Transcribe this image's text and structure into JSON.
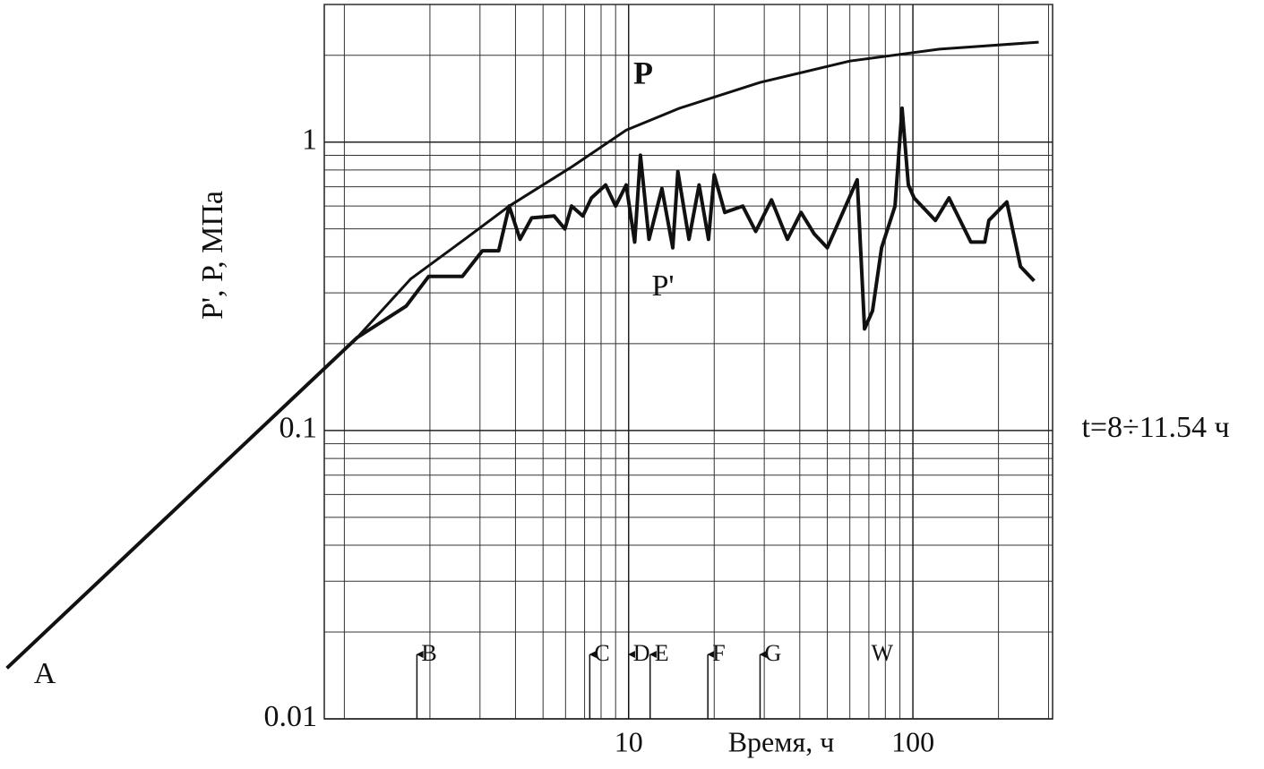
{
  "chart_data": {
    "type": "line",
    "y_label": "P', P, МПа",
    "x_label": "Время, ч",
    "log_x": true,
    "log_y": true,
    "grid": true,
    "xlim": [
      0.85,
      310
    ],
    "ylim": [
      0.01,
      3
    ],
    "xticks": [
      10,
      100
    ],
    "yticks": [
      0.01,
      0.1,
      1
    ],
    "xminor": [
      1,
      2,
      3,
      4,
      5,
      6,
      7,
      8,
      9,
      20,
      30,
      40,
      50,
      60,
      70,
      80,
      90,
      200,
      300
    ],
    "yminor": [
      0.02,
      0.03,
      0.04,
      0.05,
      0.06,
      0.07,
      0.08,
      0.09,
      0.2,
      0.3,
      0.4,
      0.5,
      0.6,
      0.7,
      0.8,
      0.9,
      2,
      3
    ],
    "series": [
      {
        "name": "P",
        "color": "#111111",
        "x": [
          0.065,
          1.11,
          1.71,
          2.65,
          3.8,
          6.3,
          9.8,
          15.1,
          29,
          60,
          124,
          277
        ],
        "values": [
          0.015,
          0.21,
          0.335,
          0.46,
          0.6,
          0.82,
          1.1,
          1.31,
          1.61,
          1.91,
          2.1,
          2.22
        ]
      },
      {
        "name": "P'",
        "color": "#111111",
        "x": [
          0.065,
          1.11,
          1.65,
          1.98,
          2.6,
          3.06,
          3.49,
          3.8,
          4.15,
          4.56,
          5.47,
          5.97,
          6.3,
          6.9,
          7.4,
          8.3,
          9.0,
          9.8,
          10.5,
          11.0,
          11.8,
          13.1,
          14.3,
          14.9,
          16.3,
          17.7,
          19.1,
          20,
          21.8,
          25.2,
          28,
          31.8,
          36.2,
          40.4,
          45,
          50,
          63.7,
          67.6,
          72.1,
          77.6,
          86.5,
          91.6,
          96.4,
          101,
          120,
          134,
          160,
          179,
          185,
          214,
          239,
          267
        ],
        "values": [
          0.015,
          0.21,
          0.27,
          0.342,
          0.342,
          0.42,
          0.42,
          0.6,
          0.46,
          0.546,
          0.554,
          0.5,
          0.6,
          0.554,
          0.64,
          0.71,
          0.6,
          0.71,
          0.45,
          0.9,
          0.46,
          0.69,
          0.43,
          0.79,
          0.46,
          0.71,
          0.46,
          0.77,
          0.57,
          0.6,
          0.49,
          0.63,
          0.46,
          0.57,
          0.48,
          0.43,
          0.74,
          0.225,
          0.26,
          0.43,
          0.6,
          1.31,
          0.71,
          0.64,
          0.535,
          0.64,
          0.45,
          0.45,
          0.535,
          0.62,
          0.37,
          0.33
        ]
      }
    ],
    "annotations": [
      {
        "label": "P"
      },
      {
        "label": "P'"
      },
      {
        "label": "A"
      },
      {
        "label": "t=8÷11.54 ч"
      }
    ],
    "markers": [
      {
        "label": "B",
        "x": 1.8,
        "arrow": true
      },
      {
        "label": "C",
        "x": 7.3,
        "arrow": true
      },
      {
        "label": "D",
        "x": 10,
        "arrow": true
      },
      {
        "label": "E",
        "x": 11.9,
        "arrow": true
      },
      {
        "label": "F",
        "x": 19,
        "arrow": true
      },
      {
        "label": "G",
        "x": 29,
        "arrow": true
      },
      {
        "label": "W",
        "x": 78,
        "arrow": false
      }
    ]
  }
}
